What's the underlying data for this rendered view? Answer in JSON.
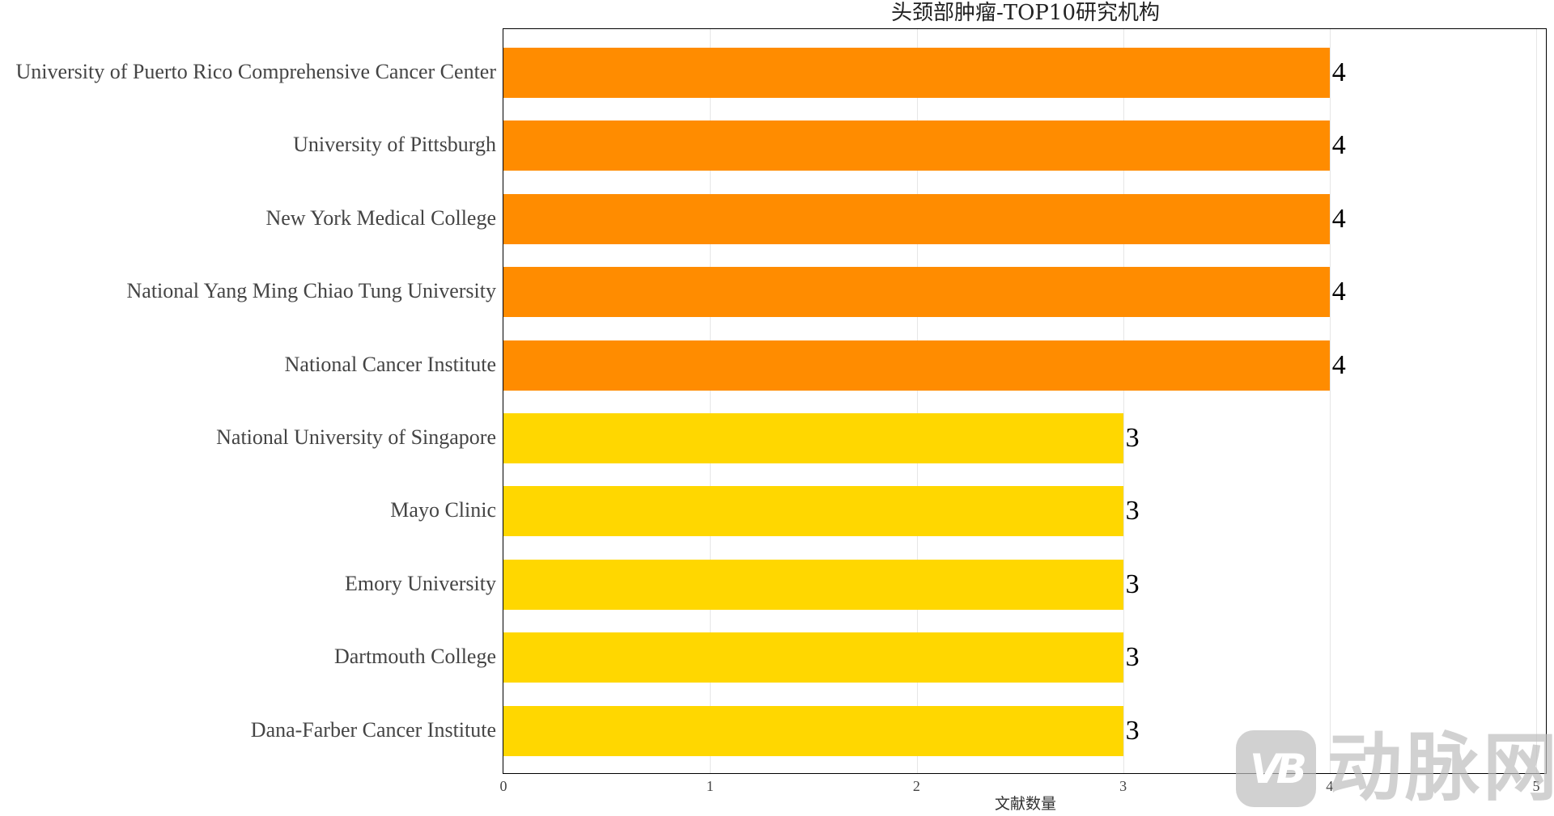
{
  "chart_data": {
    "type": "bar",
    "orientation": "horizontal",
    "title": "头颈部肿瘤-TOP10研究机构",
    "xlabel": "文献数量",
    "ylabel": "",
    "xlim": [
      0,
      5
    ],
    "xticks": [
      "0",
      "1",
      "2",
      "3",
      "4",
      "5"
    ],
    "grid": "vertical",
    "legend": "none",
    "categories": [
      "University of Puerto Rico Comprehensive Cancer Center",
      "University of Pittsburgh",
      "New York Medical College",
      "National Yang Ming Chiao Tung University",
      "National Cancer Institute",
      "National University of Singapore",
      "Mayo Clinic",
      "Emory University",
      "Dartmouth College",
      "Dana-Farber Cancer Institute"
    ],
    "values": [
      4,
      4,
      4,
      4,
      4,
      3,
      3,
      3,
      3,
      3
    ],
    "value_labels": [
      "4",
      "4",
      "4",
      "4",
      "4",
      "3",
      "3",
      "3",
      "3",
      "3"
    ],
    "colors": {
      "value_4": "#ff8c00",
      "value_3": "#ffd700"
    }
  },
  "watermark": {
    "logo_text": "VB",
    "text": "动脉网"
  }
}
